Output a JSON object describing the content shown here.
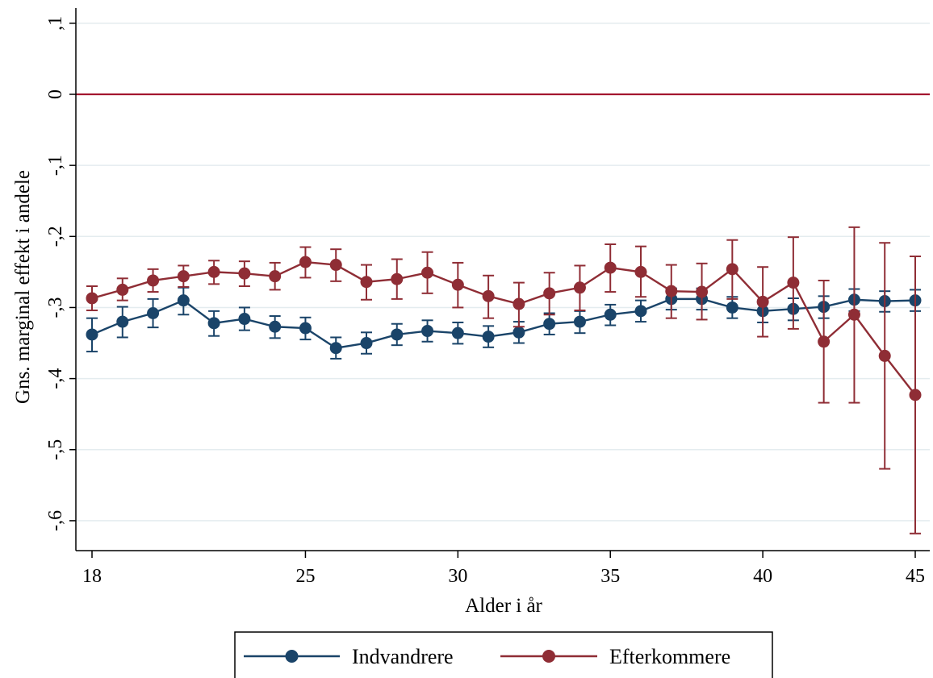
{
  "chart_data": {
    "type": "line",
    "title": "",
    "xlabel": "Alder i år",
    "ylabel": "Gns. marginal effekt i andele",
    "xlim": [
      18,
      45
    ],
    "ylim": [
      -0.64,
      0.12
    ],
    "x_ticks": [
      18,
      25,
      30,
      35,
      40,
      45
    ],
    "x_tick_labels": [
      "18",
      "25",
      "30",
      "35",
      "40",
      "45"
    ],
    "y_ticks": [
      0.1,
      0,
      -0.1,
      -0.2,
      -0.3,
      -0.4,
      -0.5,
      -0.6
    ],
    "y_tick_labels": [
      ",1",
      "0",
      "-,1",
      "-,2",
      "-,3",
      "-,4",
      "-,5",
      "-,6"
    ],
    "grid": true,
    "reference_line": {
      "y": 0,
      "color": "#a3162f"
    },
    "legend": {
      "placement": "bottom",
      "entries": [
        "Indvandrere",
        "Efterkommere"
      ]
    },
    "x": [
      18,
      19,
      20,
      21,
      22,
      23,
      24,
      25,
      26,
      27,
      28,
      29,
      30,
      31,
      32,
      33,
      34,
      35,
      36,
      37,
      38,
      39,
      40,
      41,
      42,
      43,
      44,
      45
    ],
    "series": [
      {
        "name": "Indvandrere",
        "color": "#1a4469",
        "values": [
          -0.338,
          -0.32,
          -0.308,
          -0.29,
          -0.322,
          -0.316,
          -0.327,
          -0.329,
          -0.357,
          -0.35,
          -0.338,
          -0.333,
          -0.336,
          -0.341,
          -0.335,
          -0.323,
          -0.32,
          -0.31,
          -0.305,
          -0.288,
          -0.288,
          -0.3,
          -0.305,
          -0.302,
          -0.299,
          -0.289,
          -0.291,
          -0.29
        ],
        "lower": [
          -0.362,
          -0.342,
          -0.328,
          -0.31,
          -0.34,
          -0.332,
          -0.343,
          -0.345,
          -0.372,
          -0.365,
          -0.353,
          -0.348,
          -0.351,
          -0.356,
          -0.35,
          -0.338,
          -0.336,
          -0.325,
          -0.32,
          -0.303,
          -0.303,
          -0.315,
          -0.321,
          -0.318,
          -0.315,
          -0.305,
          -0.306,
          -0.305
        ],
        "upper": [
          -0.315,
          -0.299,
          -0.288,
          -0.272,
          -0.305,
          -0.3,
          -0.312,
          -0.314,
          -0.342,
          -0.335,
          -0.323,
          -0.318,
          -0.321,
          -0.326,
          -0.32,
          -0.308,
          -0.305,
          -0.296,
          -0.29,
          -0.273,
          -0.273,
          -0.285,
          -0.29,
          -0.287,
          -0.284,
          -0.274,
          -0.277,
          -0.275
        ]
      },
      {
        "name": "Efterkommere",
        "color": "#8f2d35",
        "values": [
          -0.287,
          -0.275,
          -0.262,
          -0.256,
          -0.25,
          -0.252,
          -0.256,
          -0.236,
          -0.24,
          -0.264,
          -0.26,
          -0.251,
          -0.268,
          -0.284,
          -0.295,
          -0.28,
          -0.272,
          -0.244,
          -0.25,
          -0.277,
          -0.278,
          -0.246,
          -0.292,
          -0.265,
          -0.348,
          -0.31,
          -0.368,
          -0.423
        ],
        "lower": [
          -0.304,
          -0.29,
          -0.278,
          -0.271,
          -0.267,
          -0.27,
          -0.275,
          -0.258,
          -0.263,
          -0.289,
          -0.288,
          -0.28,
          -0.3,
          -0.315,
          -0.327,
          -0.31,
          -0.304,
          -0.278,
          -0.285,
          -0.315,
          -0.317,
          -0.288,
          -0.341,
          -0.33,
          -0.434,
          -0.434,
          -0.527,
          -0.618
        ],
        "upper": [
          -0.27,
          -0.259,
          -0.246,
          -0.241,
          -0.234,
          -0.235,
          -0.237,
          -0.215,
          -0.218,
          -0.24,
          -0.232,
          -0.222,
          -0.237,
          -0.255,
          -0.265,
          -0.251,
          -0.241,
          -0.211,
          -0.214,
          -0.24,
          -0.238,
          -0.205,
          -0.243,
          -0.201,
          -0.262,
          -0.187,
          -0.209,
          -0.228
        ]
      }
    ]
  }
}
